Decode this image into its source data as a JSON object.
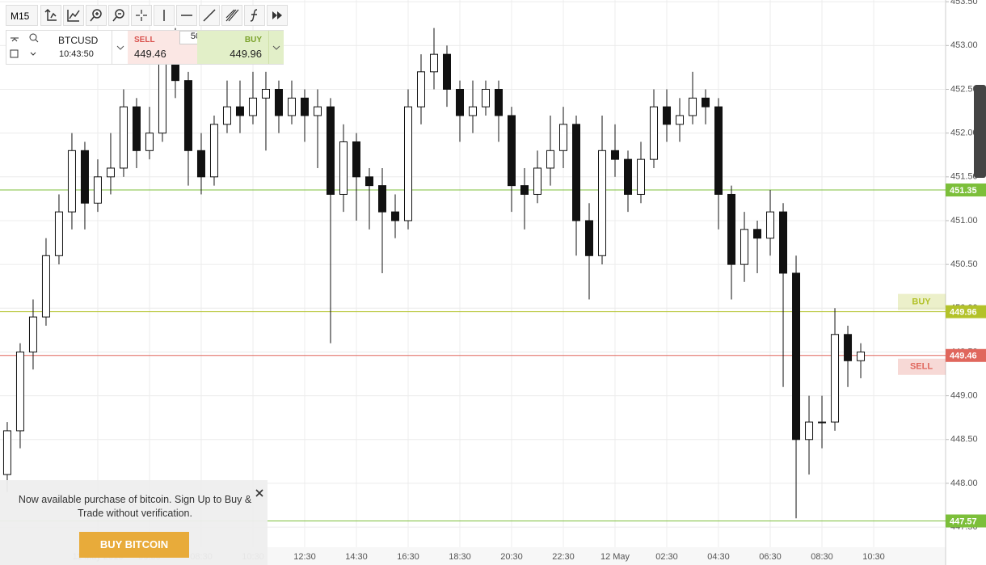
{
  "toolbar": {
    "timeframe": "M15"
  },
  "ticker": {
    "symbol": "BTCUSD",
    "time": "10:43:50",
    "sell_label": "SELL",
    "sell_price": 449.46,
    "quantity": 50,
    "buy_label": "BUY",
    "buy_price": 449.96
  },
  "notice": {
    "text": "Now available purchase of bitcoin. Sign Up to Buy & Trade without verification.",
    "button": "BUY BITCOIN"
  },
  "chart_data": {
    "type": "candlestick",
    "x": [
      1.0,
      1.5,
      2.0,
      2.5,
      3.0,
      3.5,
      4.0,
      4.5,
      5.0,
      5.5,
      6.0,
      6.5,
      7.0,
      7.5,
      8.0,
      8.5,
      9.0,
      9.5,
      10.0,
      10.5,
      11.0,
      11.5,
      12.0,
      12.5,
      13.0,
      13.5,
      14.0,
      14.5,
      15.0,
      15.5,
      16.0,
      16.5,
      17.0,
      17.5,
      18.0,
      18.5,
      19.0,
      19.5,
      20.0,
      20.5,
      21.0,
      21.5,
      22.0,
      22.5,
      23.0,
      23.5,
      24.0,
      24.5,
      25.0,
      25.5,
      26.0,
      26.5,
      27.0,
      27.5,
      28.0,
      28.5,
      29.0,
      29.5,
      30.0,
      30.5,
      31.0,
      31.5,
      32.0,
      32.5,
      33.0,
      33.5,
      34.0
    ],
    "open": [
      448.1,
      448.6,
      449.5,
      449.9,
      450.6,
      451.1,
      451.8,
      451.2,
      451.5,
      451.6,
      452.3,
      451.8,
      452.0,
      452.8,
      452.6,
      451.8,
      451.5,
      452.1,
      452.3,
      452.2,
      452.4,
      452.5,
      452.2,
      452.4,
      452.2,
      452.3,
      451.3,
      451.9,
      451.5,
      451.4,
      451.1,
      451.0,
      452.3,
      452.7,
      452.9,
      452.5,
      452.2,
      452.3,
      452.5,
      452.2,
      451.4,
      451.3,
      451.6,
      451.8,
      452.1,
      451.0,
      450.6,
      451.8,
      451.7,
      451.3,
      451.7,
      452.3,
      452.1,
      452.2,
      452.4,
      452.3,
      451.3,
      450.5,
      450.9,
      450.8,
      451.1,
      450.4,
      448.5,
      448.7,
      448.7,
      449.7,
      449.4
    ],
    "high": [
      448.7,
      449.6,
      450.1,
      450.8,
      451.3,
      452.0,
      451.9,
      451.7,
      452.0,
      452.5,
      452.4,
      452.3,
      453.1,
      453.2,
      452.7,
      452.0,
      452.2,
      452.6,
      452.6,
      452.7,
      452.7,
      452.6,
      452.6,
      452.5,
      452.5,
      452.4,
      452.1,
      452.0,
      451.6,
      451.6,
      451.3,
      452.5,
      452.9,
      453.2,
      453.0,
      452.6,
      452.6,
      452.6,
      452.6,
      452.3,
      451.6,
      451.8,
      452.2,
      452.3,
      452.2,
      451.2,
      452.2,
      452.1,
      451.8,
      451.9,
      452.5,
      452.5,
      452.4,
      452.7,
      452.5,
      452.4,
      451.4,
      451.1,
      451.0,
      451.35,
      451.2,
      450.6,
      449.0,
      449.0,
      450.0,
      449.8,
      449.6
    ],
    "low": [
      447.9,
      448.4,
      449.3,
      449.8,
      450.5,
      450.9,
      450.9,
      451.1,
      451.3,
      451.5,
      451.6,
      451.7,
      451.9,
      452.4,
      451.4,
      451.3,
      451.4,
      452.0,
      452.0,
      452.1,
      451.8,
      452.0,
      452.1,
      451.9,
      451.6,
      449.6,
      451.1,
      451.0,
      450.9,
      450.4,
      450.8,
      450.9,
      452.1,
      452.5,
      452.3,
      451.9,
      452.0,
      452.2,
      451.9,
      451.1,
      450.9,
      451.2,
      451.4,
      451.6,
      450.6,
      450.1,
      450.5,
      451.5,
      451.1,
      451.2,
      451.6,
      451.9,
      451.9,
      452.1,
      452.1,
      450.9,
      450.1,
      450.3,
      450.4,
      450.6,
      449.1,
      447.6,
      448.1,
      448.4,
      448.6,
      449.1,
      449.2
    ],
    "close": [
      448.6,
      449.5,
      449.9,
      450.6,
      451.1,
      451.8,
      451.2,
      451.5,
      451.6,
      452.3,
      451.8,
      452.0,
      452.8,
      452.6,
      451.8,
      451.5,
      452.1,
      452.3,
      452.2,
      452.4,
      452.5,
      452.2,
      452.4,
      452.2,
      452.3,
      451.3,
      451.9,
      451.5,
      451.4,
      451.1,
      451.0,
      452.3,
      452.7,
      452.9,
      452.5,
      452.2,
      452.3,
      452.5,
      452.2,
      451.4,
      451.3,
      451.6,
      451.8,
      452.1,
      451.0,
      450.6,
      451.8,
      451.7,
      451.3,
      451.7,
      452.3,
      452.1,
      452.2,
      452.4,
      452.3,
      451.3,
      450.5,
      450.9,
      450.8,
      451.1,
      450.4,
      448.5,
      448.7,
      448.7,
      449.7,
      449.4,
      449.5
    ],
    "up_color": "#ffffff",
    "down_color": "#111111",
    "xlim": [
      0.72,
      37.28
    ],
    "xticks": [
      {
        "value": 4.5,
        "label": "11 May 2016"
      },
      {
        "value": 6.5,
        "label": "06:30"
      },
      {
        "value": 8.5,
        "label": "08:30"
      },
      {
        "value": 10.5,
        "label": "10:30"
      },
      {
        "value": 12.5,
        "label": "12:30"
      },
      {
        "value": 14.5,
        "label": "14:30"
      },
      {
        "value": 16.5,
        "label": "16:30"
      },
      {
        "value": 18.5,
        "label": "18:30"
      },
      {
        "value": 20.5,
        "label": "20:30"
      },
      {
        "value": 22.5,
        "label": "22:30"
      },
      {
        "value": 24.5,
        "label": "12 May"
      },
      {
        "value": 26.5,
        "label": "02:30"
      },
      {
        "value": 28.5,
        "label": "04:30"
      },
      {
        "value": 30.5,
        "label": "06:30"
      },
      {
        "value": 32.5,
        "label": "08:30"
      },
      {
        "value": 34.5,
        "label": "10:30"
      }
    ],
    "ylim": [
      447.27,
      453.52
    ],
    "yticks": [
      {
        "value": 447.5,
        "label": "447.50"
      },
      {
        "value": 448,
        "label": "448.00"
      },
      {
        "value": 448.5,
        "label": "448.50"
      },
      {
        "value": 449,
        "label": "449.00"
      },
      {
        "value": 449.5,
        "label": "449.50"
      },
      {
        "value": 450,
        "label": "450.00"
      },
      {
        "value": 450.5,
        "label": "450.50"
      },
      {
        "value": 451,
        "label": "451.00"
      },
      {
        "value": 451.5,
        "label": "451.50"
      },
      {
        "value": 452,
        "label": "452.00"
      },
      {
        "value": 452.5,
        "label": "452.50"
      },
      {
        "value": 453,
        "label": "453.00"
      },
      {
        "value": 453.5,
        "label": "453.50"
      }
    ],
    "grid": true,
    "levels": [
      {
        "value": 451.35,
        "color": "#7cbf3a"
      },
      {
        "value": 449.96,
        "name": "BUY",
        "color": "#b3c22a"
      },
      {
        "value": 449.46,
        "name": "SELL",
        "color": "#e0675d"
      },
      {
        "value": 447.57,
        "color": "#7cbf3a"
      }
    ]
  }
}
